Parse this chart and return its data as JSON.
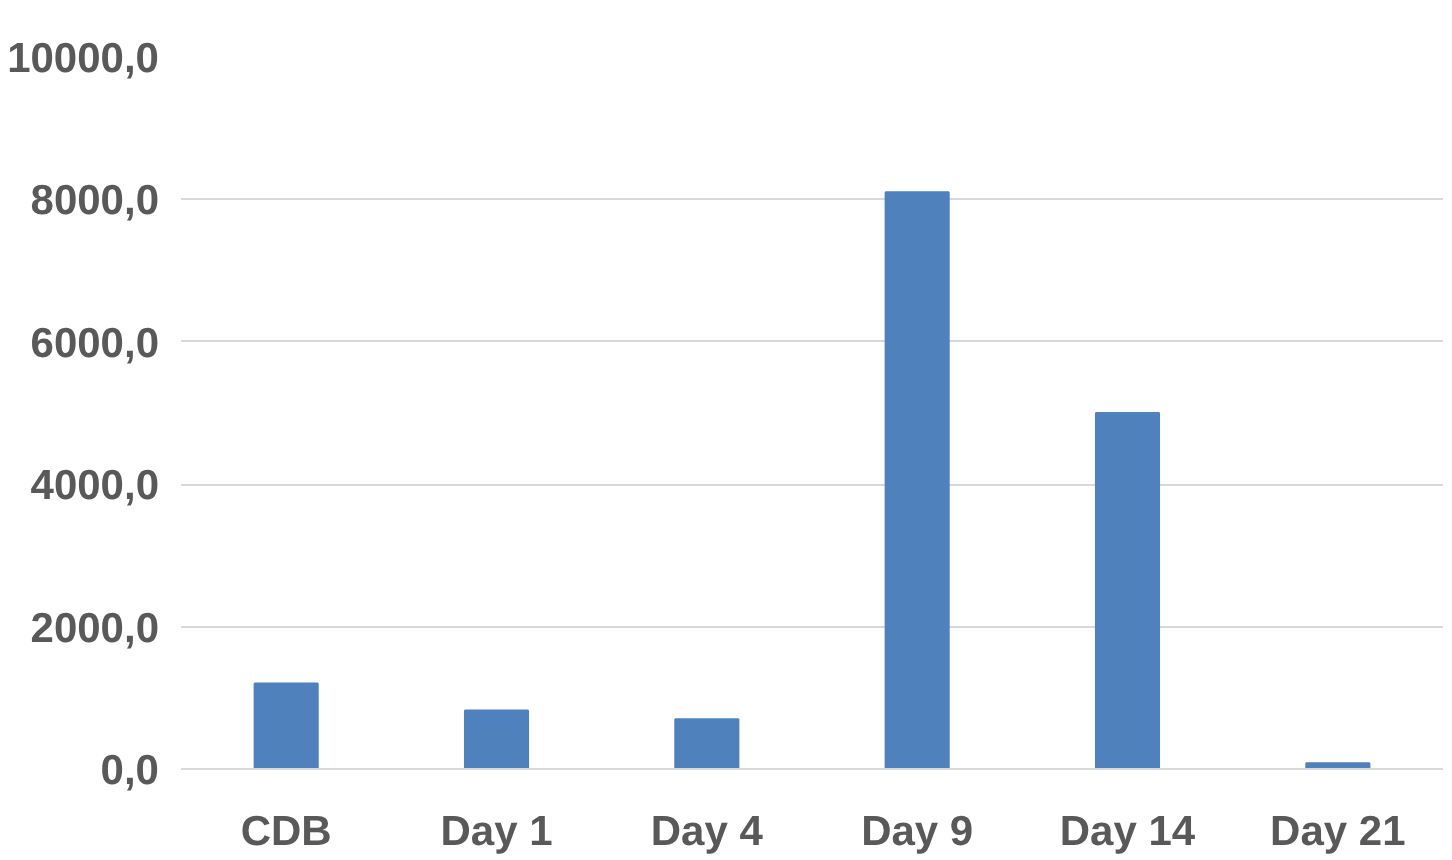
{
  "chart_data": {
    "type": "bar",
    "categories": [
      "CDB",
      "Day 1",
      "Day 4",
      "Day 9",
      "Day 14",
      "Day 21"
    ],
    "values": [
      1200,
      820,
      700,
      8100,
      5000,
      80
    ],
    "color": "#4f81bd",
    "ylim": [
      0,
      10000
    ],
    "yticks": [
      {
        "value": 0,
        "label": "0,0"
      },
      {
        "value": 2000,
        "label": "2000,0"
      },
      {
        "value": 4000,
        "label": "4000,0"
      },
      {
        "value": 6000,
        "label": "6000,0"
      },
      {
        "value": 8000,
        "label": "8000,0"
      },
      {
        "value": 10000,
        "label": "10000,0"
      }
    ],
    "grid": "y"
  }
}
